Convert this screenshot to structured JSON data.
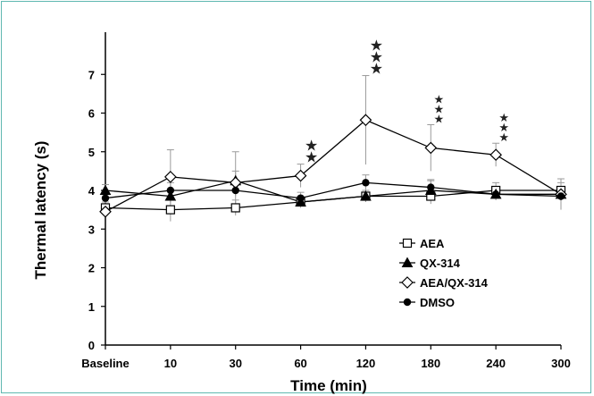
{
  "chart_data": {
    "type": "line",
    "xlabel": "Time (min)",
    "ylabel": "Thermal latency (s)",
    "categories": [
      "Baseline",
      "10",
      "30",
      "60",
      "120",
      "180",
      "240",
      "300"
    ],
    "y_ticks": [
      "0",
      "1",
      "2",
      "3",
      "4",
      "5",
      "6",
      "7"
    ],
    "ylim": [
      0,
      8
    ],
    "grid": false,
    "legend_position": "lower-right",
    "series": [
      {
        "name": "AEA",
        "marker": "open-square",
        "values": [
          3.55,
          3.5,
          3.55,
          3.7,
          3.85,
          3.85,
          4.0,
          4.0
        ],
        "errors": [
          0.15,
          0.3,
          0.2,
          0.15,
          0.15,
          0.2,
          0.2,
          0.2
        ]
      },
      {
        "name": "QX-314",
        "marker": "filled-triangle",
        "values": [
          4.0,
          3.85,
          4.25,
          3.7,
          3.85,
          4.0,
          3.9,
          3.9
        ],
        "errors": [
          0.15,
          0.15,
          0.25,
          0.1,
          0.15,
          0.25,
          0.15,
          0.15
        ]
      },
      {
        "name": "AEA/QX-314",
        "marker": "open-diamond",
        "values": [
          3.45,
          4.35,
          4.2,
          4.38,
          5.82,
          5.1,
          4.92,
          3.9
        ],
        "errors": [
          0.15,
          0.7,
          0.8,
          0.3,
          1.15,
          0.6,
          0.3,
          0.4
        ]
      },
      {
        "name": "DMSO",
        "marker": "filled-circle",
        "values": [
          3.8,
          4.0,
          4.0,
          3.8,
          4.2,
          4.08,
          3.9,
          3.85
        ],
        "errors": [
          0.15,
          0.2,
          0.15,
          0.15,
          0.2,
          0.2,
          0.15,
          0.2
        ]
      }
    ],
    "annotations": [
      {
        "category": "60",
        "symbol": "★",
        "count": 2
      },
      {
        "category": "120",
        "symbol": "★",
        "count": 3
      },
      {
        "category": "180",
        "symbol": "★",
        "count": 3
      },
      {
        "category": "240",
        "symbol": "★",
        "count": 3
      }
    ]
  }
}
